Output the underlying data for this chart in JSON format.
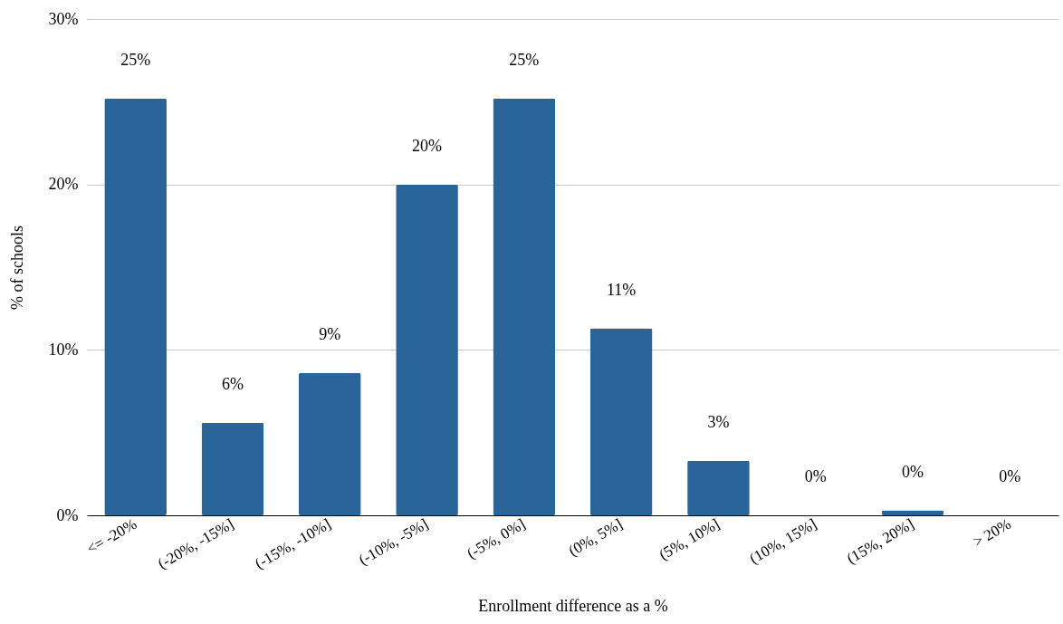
{
  "chart_data": {
    "type": "bar",
    "xlabel": "Enrollment difference as a %",
    "ylabel": "% of schools",
    "categories": [
      "<= -20%",
      "(-20%, -15%]",
      "(-15%, -10%]",
      "(-10%, -5%]",
      "(-5%, 0%]",
      "(0%, 5%]",
      "(5%, 10%]",
      "(10%, 15%]",
      "(15%, 20%]",
      "> 20%"
    ],
    "values": [
      25.2,
      5.6,
      8.6,
      20.0,
      25.2,
      11.3,
      3.3,
      0,
      0.3,
      0
    ],
    "value_labels": [
      "25%",
      "6%",
      "9%",
      "20%",
      "25%",
      "11%",
      "3%",
      "0%",
      "0%",
      "0%"
    ],
    "color": "#2a6599",
    "ylim": [
      0,
      30
    ],
    "yticks": [
      {
        "value": 0,
        "label": "0%"
      },
      {
        "value": 10,
        "label": "10%"
      },
      {
        "value": 20,
        "label": "20%"
      },
      {
        "value": 30,
        "label": "30%"
      }
    ],
    "grid": "y"
  }
}
